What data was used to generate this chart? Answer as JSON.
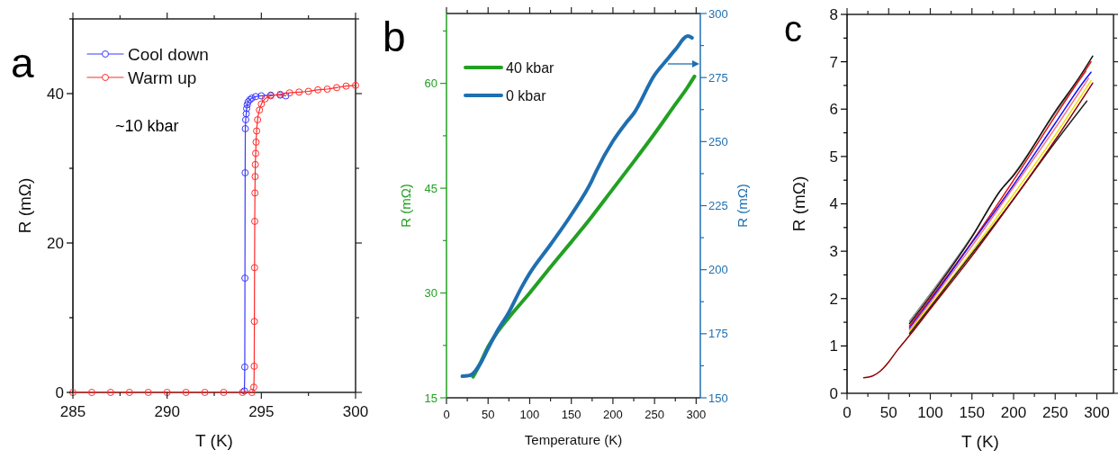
{
  "chart_data": [
    {
      "type": "line",
      "xlabel": "T (K)",
      "ylabel": "R (mΩ)",
      "annotations": [
        "a",
        "~10 kbar"
      ],
      "xlim": [
        285,
        300
      ],
      "ylim": [
        0,
        50
      ],
      "xticks": [
        285,
        {
          "value": 287.5,
          "label": null
        },
        290,
        {
          "value": 292.5,
          "label": null
        },
        295,
        {
          "value": 297.5,
          "label": null
        },
        300
      ],
      "yticks": [
        0,
        {
          "value": 10,
          "label": null
        },
        20,
        {
          "value": 30,
          "label": null
        },
        40,
        {
          "value": 50,
          "label": null
        }
      ],
      "legend": "top left",
      "marker": "circle",
      "series": [
        {
          "name": "Cool down",
          "color": "#3a3aff",
          "x": [
            294.1,
            294.12,
            294.13,
            294.14,
            294.15,
            294.17,
            294.2,
            294.22,
            294.25,
            294.3,
            294.4,
            294.5,
            294.7,
            295,
            295.5,
            296,
            296.3
          ],
          "values": [
            0.2,
            3.4,
            15.3,
            29.4,
            35.3,
            36.5,
            37.3,
            38,
            38.5,
            38.9,
            39.2,
            39.4,
            39.6,
            39.7,
            39.8,
            39.8,
            39.7
          ]
        },
        {
          "name": "Warm up",
          "color": "#ff2a2a",
          "x": [
            285,
            286,
            287,
            288,
            289,
            290,
            291,
            292,
            293,
            294,
            294.5,
            294.6,
            294.62,
            294.63,
            294.64,
            294.65,
            294.66,
            294.67,
            294.68,
            294.7,
            294.72,
            294.75,
            294.8,
            294.9,
            295,
            295.2,
            295.5,
            296,
            296.5,
            297,
            297.5,
            298,
            298.5,
            299,
            299.5,
            300
          ],
          "values": [
            0,
            0,
            0,
            0,
            0,
            0,
            0,
            0,
            0,
            0,
            0,
            0.7,
            3.5,
            9.5,
            16.7,
            22.9,
            26.7,
            28.9,
            30.5,
            32,
            33.5,
            35,
            36.5,
            37.8,
            38.6,
            39.3,
            39.7,
            39.9,
            40.1,
            40.2,
            40.3,
            40.5,
            40.6,
            40.8,
            41,
            41.1
          ]
        }
      ]
    },
    {
      "type": "line",
      "xlabel": "Temperature (K)",
      "ylabel": "R (mΩ)",
      "y2label": "R (mΩ)",
      "annotations": [
        "b"
      ],
      "xlim": [
        0,
        305
      ],
      "ylim": [
        15,
        70
      ],
      "y2lim": [
        150,
        300
      ],
      "xticks": [
        0,
        {
          "value": 25,
          "label": null
        },
        50,
        {
          "value": 75,
          "label": null
        },
        100,
        {
          "value": 125,
          "label": null
        },
        150,
        {
          "value": 175,
          "label": null
        },
        200,
        {
          "value": 225,
          "label": null
        },
        250,
        {
          "value": 275,
          "label": null
        },
        300
      ],
      "yticks": [
        15,
        {
          "value": 22.5,
          "label": null
        },
        30,
        {
          "value": 37.5,
          "label": null
        },
        45,
        {
          "value": 52.5,
          "label": null
        },
        60,
        {
          "value": 67.5,
          "label": null
        }
      ],
      "y2ticks": [
        150,
        {
          "value": 162.5,
          "label": null
        },
        175,
        {
          "value": 187.5,
          "label": null
        },
        200,
        {
          "value": 212.5,
          "label": null
        },
        225,
        {
          "value": 237.5,
          "label": null
        },
        250,
        {
          "value": 262.5,
          "label": null
        },
        275,
        {
          "value": 287.5,
          "label": null
        },
        300
      ],
      "legend": "top left",
      "series": [
        {
          "name": "40 kbar",
          "color": "#22a022",
          "x": [
            32,
            40,
            50,
            60,
            75,
            100,
            125,
            150,
            175,
            200,
            225,
            250,
            275,
            290,
            298
          ],
          "values": [
            18,
            19.8,
            22.3,
            24.2,
            26.5,
            30,
            33.7,
            37.3,
            41,
            44.9,
            48.8,
            52.8,
            57,
            59.5,
            61
          ]
        },
        {
          "name": "0 kbar",
          "color": "#1f6fb0",
          "axis": "y2",
          "x": [
            19,
            25,
            30,
            40,
            50,
            60,
            75,
            90,
            100,
            125,
            150,
            175,
            180,
            200,
            215,
            225,
            250,
            265,
            275,
            290,
            295
          ],
          "values": [
            158.4,
            158.6,
            159,
            163,
            169.3,
            175.5,
            183.4,
            193,
            198.6,
            209.8,
            221.5,
            235,
            238.5,
            250.2,
            257,
            261,
            276,
            282,
            285.9,
            291.2,
            290.5
          ]
        }
      ]
    },
    {
      "type": "line",
      "xlabel": "T (K)",
      "ylabel": "R (mΩ)",
      "annotations": [
        "c"
      ],
      "xlim": [
        0,
        320
      ],
      "ylim": [
        0,
        8
      ],
      "xticks": [
        0,
        {
          "value": 25,
          "label": null
        },
        50,
        {
          "value": 75,
          "label": null
        },
        100,
        {
          "value": 125,
          "label": null
        },
        150,
        {
          "value": 175,
          "label": null
        },
        200,
        {
          "value": 225,
          "label": null
        },
        250,
        {
          "value": 275,
          "label": null
        },
        300
      ],
      "yticks": [
        0,
        {
          "value": 0.5,
          "label": null
        },
        1,
        {
          "value": 1.5,
          "label": null
        },
        2,
        {
          "value": 2.5,
          "label": null
        },
        3,
        {
          "value": 3.5,
          "label": null
        },
        4,
        {
          "value": 4.5,
          "label": null
        },
        5,
        {
          "value": 5.5,
          "label": null
        },
        6,
        {
          "value": 6.5,
          "label": null
        },
        7,
        {
          "value": 7.5,
          "label": null
        },
        8
      ],
      "series": [
        {
          "color": "#888888",
          "x": [
            75,
            100,
            150,
            185,
            200,
            250,
            287
          ],
          "values": [
            1.52,
            2.1,
            3.32,
            4.3,
            4.62,
            5.92,
            6.8
          ]
        },
        {
          "color": "#111111",
          "x": [
            75,
            100,
            150,
            185,
            200,
            250,
            280,
            295
          ],
          "values": [
            1.47,
            2.05,
            3.3,
            4.3,
            4.6,
            5.95,
            6.7,
            7.12
          ]
        },
        {
          "color": "#e01010",
          "x": [
            75,
            100,
            150,
            200,
            250,
            280,
            293
          ],
          "values": [
            1.42,
            2,
            3.2,
            4.5,
            5.85,
            6.65,
            7
          ]
        },
        {
          "color": "#1010ff",
          "x": [
            75,
            100,
            150,
            200,
            250,
            285,
            293
          ],
          "values": [
            1.38,
            1.96,
            3.18,
            4.4,
            5.7,
            6.6,
            6.78
          ]
        },
        {
          "color": "#ff7080",
          "x": [
            75,
            100,
            150,
            200,
            250,
            290
          ],
          "values": [
            1.34,
            1.92,
            3.11,
            4.35,
            5.6,
            6.65
          ]
        },
        {
          "color": "#f0e000",
          "x": [
            75,
            100,
            150,
            200,
            250,
            293
          ],
          "values": [
            1.3,
            1.86,
            3,
            4.2,
            5.45,
            6.6
          ]
        },
        {
          "color": "#222222",
          "x": [
            75,
            100,
            150,
            200,
            250,
            288
          ],
          "values": [
            1.26,
            1.82,
            2.95,
            4.1,
            5.3,
            6.17
          ]
        },
        {
          "color": "#8b0000",
          "x": [
            20,
            30,
            40,
            50,
            60,
            75,
            100,
            150,
            200,
            250,
            295
          ],
          "values": [
            0.33,
            0.36,
            0.47,
            0.66,
            0.9,
            1.22,
            1.78,
            2.9,
            4.1,
            5.35,
            6.55
          ]
        }
      ]
    }
  ]
}
